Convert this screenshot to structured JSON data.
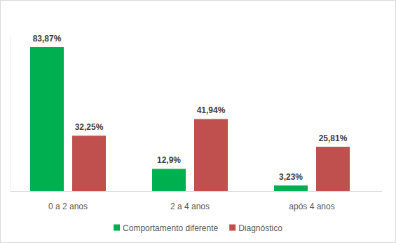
{
  "chart_data": {
    "type": "bar",
    "categories": [
      "0 a 2 anos",
      "2 a 4 anos",
      "após 4 anos"
    ],
    "series": [
      {
        "name": "Comportamento diferente",
        "color": "#00b050",
        "values": [
          83.87,
          12.9,
          3.23
        ],
        "value_labels": [
          "83,87%",
          "12,9%",
          "3,23%"
        ]
      },
      {
        "name": "Diagnóstico",
        "color": "#c0504d",
        "values": [
          32.25,
          41.94,
          25.81
        ],
        "value_labels": [
          "32,25%",
          "41,94%",
          "25,81%"
        ]
      }
    ],
    "ylim": [
      0,
      90
    ],
    "yticks": [],
    "data_labels": true,
    "tick_labels": "x",
    "legend": "bottom",
    "grid": false
  }
}
